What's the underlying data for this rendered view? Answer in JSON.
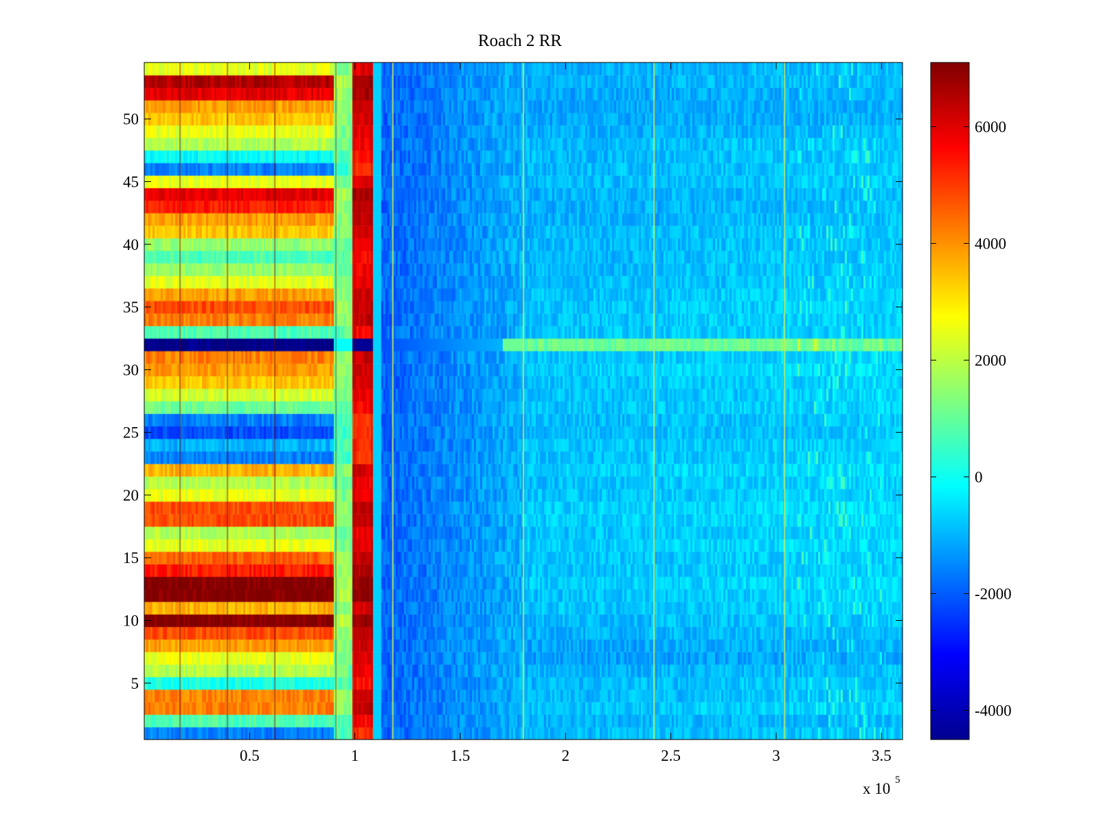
{
  "chart_data": {
    "type": "heatmap",
    "title": "Roach 2 RR",
    "xlabel": "",
    "ylabel": "",
    "xlim": [
      0,
      360000
    ],
    "ylim": [
      0.5,
      54.5
    ],
    "x_ticks": [
      50000,
      100000,
      150000,
      200000,
      250000,
      300000,
      350000
    ],
    "x_tick_labels": [
      "0.5",
      "1",
      "1.5",
      "2",
      "2.5",
      "3",
      "3.5"
    ],
    "x_multiplier": {
      "base": "x 10",
      "exponent": "5"
    },
    "y_ticks": [
      5,
      10,
      15,
      20,
      25,
      30,
      35,
      40,
      45,
      50
    ],
    "y_tick_labels": [
      "5",
      "10",
      "15",
      "20",
      "25",
      "30",
      "35",
      "40",
      "45",
      "50"
    ],
    "colorbar": {
      "colormap": "jet",
      "clim": [
        -4500,
        7100
      ],
      "ticks": [
        -4000,
        -2000,
        0,
        2000,
        4000,
        6000
      ],
      "tick_labels": [
        "-4000",
        "-2000",
        "0",
        "2000",
        "4000",
        "6000"
      ]
    },
    "n_rows": 54,
    "row_level_low_region": [
      0.25,
      0.45,
      0.75,
      0.75,
      0.4,
      0.55,
      0.6,
      0.72,
      0.8,
      1.0,
      0.7,
      1.0,
      1.0,
      0.85,
      0.78,
      0.6,
      0.55,
      0.8,
      0.8,
      0.6,
      0.55,
      0.7,
      0.25,
      0.3,
      0.2,
      0.25,
      0.48,
      0.58,
      0.68,
      0.72,
      0.75,
      0.0,
      0.45,
      0.75,
      0.8,
      0.72,
      0.6,
      0.52,
      0.45,
      0.52,
      0.68,
      0.72,
      0.85,
      0.9,
      0.6,
      0.25,
      0.38,
      0.55,
      0.6,
      0.68,
      0.72,
      0.9,
      0.95,
      0.6
    ],
    "row_level_high_region": [
      0.32,
      0.31,
      0.33,
      0.32,
      0.32,
      0.31,
      0.29,
      0.3,
      0.31,
      0.32,
      0.33,
      0.33,
      0.34,
      0.33,
      0.33,
      0.34,
      0.33,
      0.34,
      0.34,
      0.33,
      0.33,
      0.34,
      0.33,
      0.33,
      0.32,
      0.32,
      0.33,
      0.33,
      0.33,
      0.34,
      0.33,
      0.48,
      0.33,
      0.33,
      0.33,
      0.33,
      0.32,
      0.32,
      0.32,
      0.32,
      0.32,
      0.31,
      0.31,
      0.31,
      0.32,
      0.32,
      0.32,
      0.32,
      0.31,
      0.3,
      0.3,
      0.3,
      0.31,
      0.31
    ],
    "vertical_features_x": [
      91000,
      100000,
      108000,
      118000,
      180000,
      242000,
      304000
    ]
  }
}
